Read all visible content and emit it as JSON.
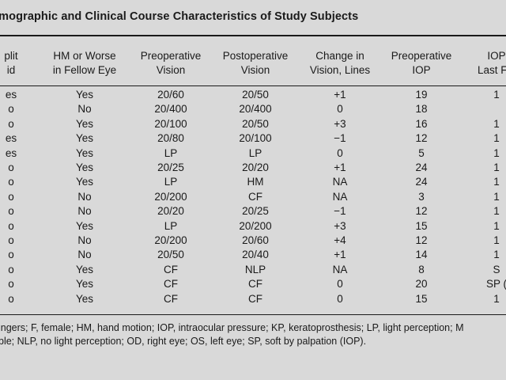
{
  "title": "emographic and Clinical Course Characteristics of Study Subjects",
  "columns": [
    [
      "plit",
      "id"
    ],
    [
      "HM or Worse",
      "in Fellow Eye"
    ],
    [
      "Preoperative",
      "Vision"
    ],
    [
      "Postoperative",
      "Vision"
    ],
    [
      "Change in",
      "Vision, Lines"
    ],
    [
      "Preoperative",
      "IOP"
    ],
    [
      "IOP",
      "Last Fol"
    ]
  ],
  "rows": [
    [
      "es",
      "Yes",
      "20/60",
      "20/50",
      "+1",
      "19",
      "1"
    ],
    [
      "o",
      "No",
      "20/400",
      "20/400",
      "0",
      "18",
      ""
    ],
    [
      "o",
      "Yes",
      "20/100",
      "20/50",
      "+3",
      "16",
      "1"
    ],
    [
      "es",
      "Yes",
      "20/80",
      "20/100",
      "−1",
      "12",
      "1"
    ],
    [
      "es",
      "Yes",
      "LP",
      "LP",
      "0",
      "5",
      "1"
    ],
    [
      "o",
      "Yes",
      "20/25",
      "20/20",
      "+1",
      "24",
      "1"
    ],
    [
      "o",
      "Yes",
      "LP",
      "HM",
      "NA",
      "24",
      "1"
    ],
    [
      "o",
      "No",
      "20/200",
      "CF",
      "NA",
      "3",
      "1"
    ],
    [
      "o",
      "No",
      "20/20",
      "20/25",
      "−1",
      "12",
      "1"
    ],
    [
      "o",
      "Yes",
      "LP",
      "20/200",
      "+3",
      "15",
      "1"
    ],
    [
      "o",
      "No",
      "20/200",
      "20/60",
      "+4",
      "12",
      "1"
    ],
    [
      "o",
      "No",
      "20/50",
      "20/40",
      "+1",
      "14",
      "1"
    ],
    [
      "o",
      "Yes",
      "CF",
      "NLP",
      "NA",
      "8",
      "S"
    ],
    [
      "o",
      "Yes",
      "CF",
      "CF",
      "0",
      "20",
      "SP ("
    ],
    [
      "o",
      "Yes",
      "CF",
      "CF",
      "0",
      "15",
      "1"
    ]
  ],
  "footnote": [
    "ingers; F, female; HM, hand motion; IOP, intraocular pressure; KP, keratoprosthesis; LP, light perception; M",
    "ble; NLP, no light perception; OD, right eye; OS, left eye; SP, soft by palpation (IOP)."
  ]
}
